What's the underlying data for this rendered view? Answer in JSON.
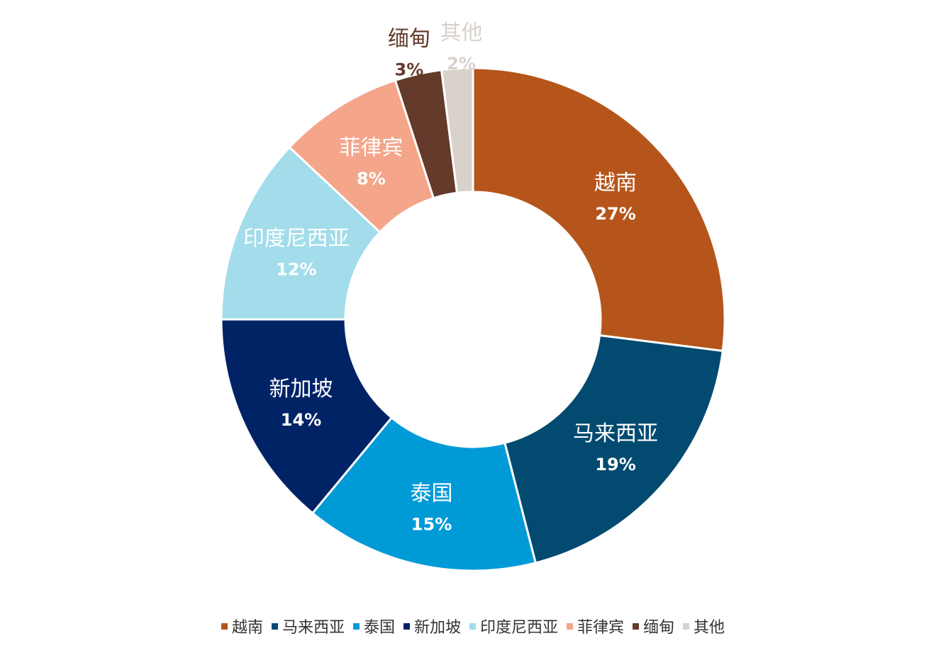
{
  "chart_data": {
    "type": "pie",
    "donut": true,
    "categories": [
      "越南",
      "马来西亚",
      "泰国",
      "新加坡",
      "印度尼西亚",
      "菲律宾",
      "缅甸",
      "其他"
    ],
    "values": [
      27,
      19,
      15,
      14,
      12,
      8,
      3,
      2
    ],
    "labels": [
      "27%",
      "19%",
      "15%",
      "14%",
      "12%",
      "8%",
      "3%",
      "2%"
    ],
    "colors": [
      "#B5551B",
      "#024A70",
      "#009BD6",
      "#002366",
      "#A3DCEA",
      "#F4A58A",
      "#643A2A",
      "#D8D2CB"
    ],
    "label_colors": [
      "#ffffff",
      "#ffffff",
      "#ffffff",
      "#ffffff",
      "#ffffff",
      "#ffffff",
      "#643A2A",
      "#D8D2CB"
    ],
    "legend_position": "bottom"
  }
}
